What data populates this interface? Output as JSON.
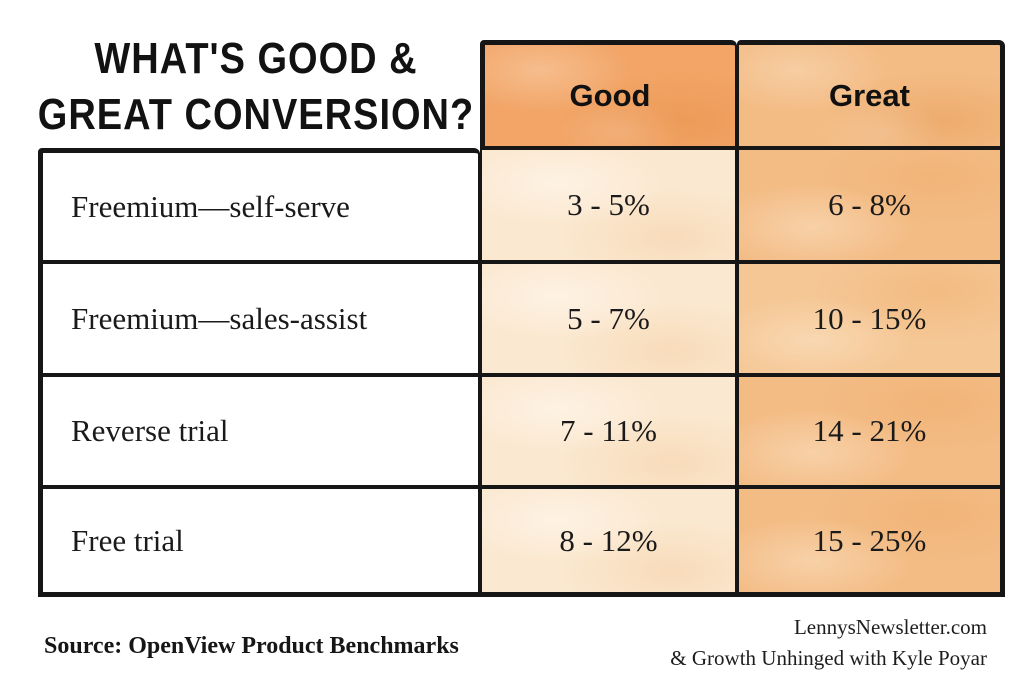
{
  "title": {
    "line1": "WHAT'S GOOD &",
    "line2": "GREAT CONVERSION?"
  },
  "columns": {
    "good": "Good",
    "great": "Great"
  },
  "rows": [
    {
      "label": "Freemium—self-serve",
      "good": "3 - 5%",
      "great": "6 - 8%"
    },
    {
      "label": "Freemium—sales-assist",
      "good": "5 - 7%",
      "great": "10 - 15%"
    },
    {
      "label": "Reverse trial",
      "good": "7 - 11%",
      "great": "14 - 21%"
    },
    {
      "label": "Free trial",
      "good": "8 - 12%",
      "great": "15 - 25%"
    }
  ],
  "footer": {
    "source": "Source: OpenView Product Benchmarks",
    "credit_line1": "LennysNewsletter.com",
    "credit_line2": "& Growth Unhinged with Kyle Poyar"
  },
  "colors": {
    "header_orange": "#F2A567",
    "good_cell": "#FBE8D0",
    "great_cell": "#F5C795",
    "border": "#161616"
  },
  "chart_data": {
    "type": "table",
    "title": "What's Good & Great Conversion?",
    "columns": [
      "Good",
      "Great"
    ],
    "categories": [
      "Freemium—self-serve",
      "Freemium—sales-assist",
      "Reverse trial",
      "Free trial"
    ],
    "series": [
      {
        "name": "Good",
        "values": [
          "3 - 5%",
          "5 - 7%",
          "7 - 11%",
          "8 - 12%"
        ]
      },
      {
        "name": "Great",
        "values": [
          "6 - 8%",
          "10 - 15%",
          "14 - 21%",
          "15 - 25%"
        ]
      }
    ],
    "source": "OpenView Product Benchmarks",
    "credits": [
      "LennysNewsletter.com",
      "& Growth Unhinged with Kyle Poyar"
    ]
  }
}
